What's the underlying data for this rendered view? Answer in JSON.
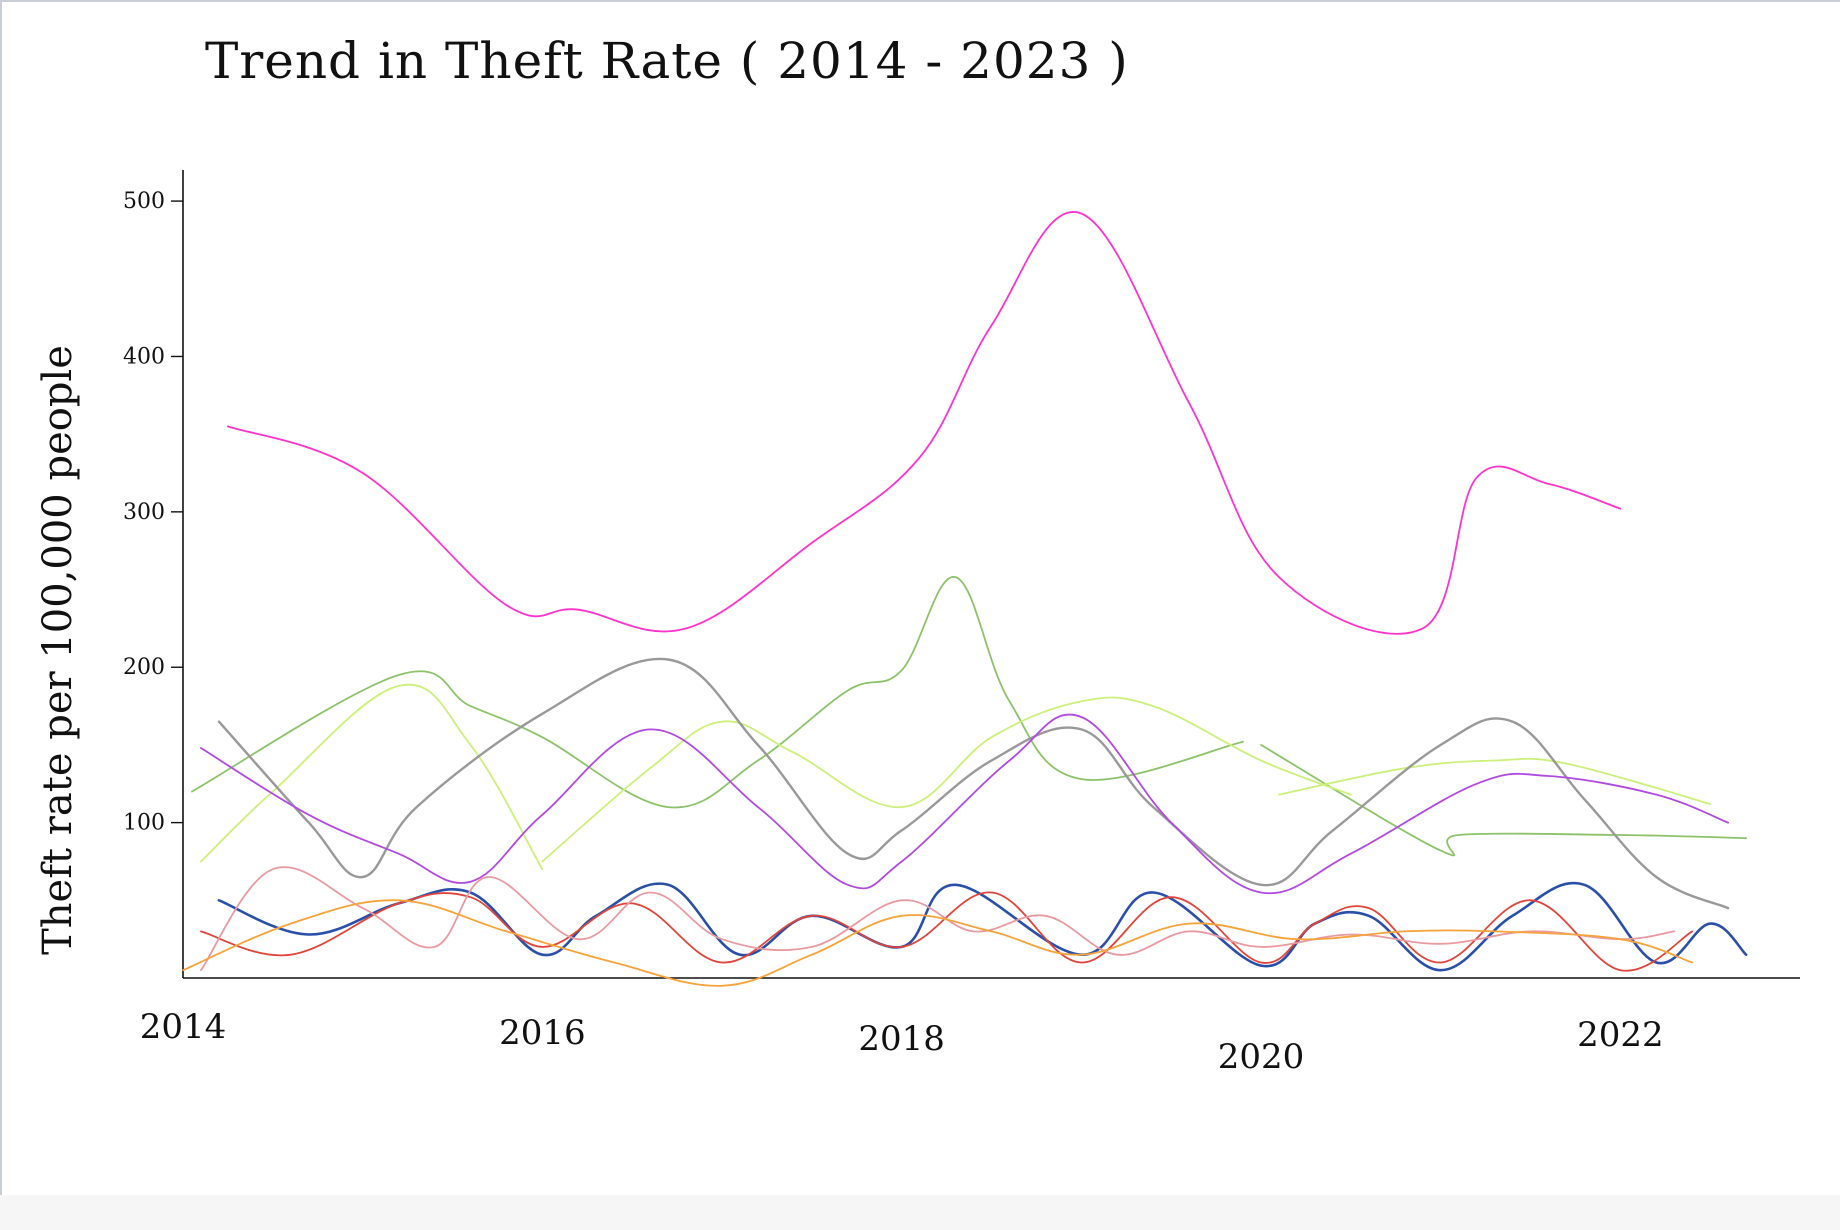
{
  "chart_data": {
    "type": "line",
    "title": "Trend in Theft Rate ( 2014 - 2023 )",
    "xlabel": "",
    "ylabel": "Theft rate per 100,000 people",
    "x_ticks": [
      "2014",
      "2016",
      "2018",
      "2020",
      "2022"
    ],
    "y_ticks": [
      "500",
      "400",
      "300",
      "200",
      "100"
    ],
    "xlim": [
      2014,
      2023
    ],
    "ylim": [
      0,
      520
    ],
    "grid": false,
    "legend": "none",
    "series": [
      {
        "color": "#ff33cc",
        "points": [
          [
            2014.25,
            355
          ],
          [
            2015.0,
            325
          ],
          [
            2015.8,
            240
          ],
          [
            2016.2,
            237
          ],
          [
            2016.8,
            225
          ],
          [
            2017.5,
            280
          ],
          [
            2018.1,
            335
          ],
          [
            2018.5,
            420
          ],
          [
            2019.0,
            492
          ],
          [
            2019.6,
            370
          ],
          [
            2020.1,
            258
          ],
          [
            2020.9,
            225
          ],
          [
            2021.2,
            322
          ],
          [
            2021.6,
            318
          ],
          [
            2022.0,
            302
          ]
        ]
      },
      {
        "color": "#8dc26b",
        "points": [
          [
            2014.05,
            120
          ],
          [
            2015.2,
            195
          ],
          [
            2015.6,
            175
          ],
          [
            2016.0,
            155
          ],
          [
            2016.7,
            110
          ],
          [
            2017.2,
            140
          ],
          [
            2017.7,
            185
          ],
          [
            2018.0,
            198
          ],
          [
            2018.3,
            258
          ],
          [
            2018.6,
            178
          ],
          [
            2019.0,
            128
          ],
          [
            2019.9,
            152
          ]
        ]
      },
      {
        "color": "#8dc26b",
        "points": [
          [
            2020.0,
            150
          ],
          [
            2021.0,
            82
          ],
          [
            2021.1,
            92
          ],
          [
            2022.0,
            92
          ],
          [
            2022.7,
            90
          ]
        ]
      },
      {
        "color": "#ccf07a",
        "points": [
          [
            2014.1,
            75
          ],
          [
            2014.5,
            120
          ],
          [
            2015.2,
            188
          ],
          [
            2015.6,
            150
          ],
          [
            2016.0,
            70
          ]
        ]
      },
      {
        "color": "#ccf07a",
        "points": [
          [
            2016.0,
            75
          ],
          [
            2016.6,
            135
          ],
          [
            2017.0,
            165
          ],
          [
            2017.4,
            145
          ],
          [
            2018.0,
            110
          ],
          [
            2018.5,
            155
          ],
          [
            2019.0,
            178
          ],
          [
            2019.4,
            175
          ],
          [
            2020.0,
            140
          ],
          [
            2020.5,
            118
          ]
        ]
      },
      {
        "color": "#ccf07a",
        "points": [
          [
            2020.1,
            118
          ],
          [
            2020.8,
            135
          ],
          [
            2021.3,
            140
          ],
          [
            2021.7,
            138
          ],
          [
            2022.5,
            112
          ]
        ]
      },
      {
        "color": "#999999",
        "points": [
          [
            2014.2,
            165
          ],
          [
            2014.7,
            100
          ],
          [
            2015.0,
            65
          ],
          [
            2015.3,
            110
          ],
          [
            2016.0,
            170
          ],
          [
            2016.7,
            205
          ],
          [
            2017.2,
            150
          ],
          [
            2017.7,
            80
          ],
          [
            2018.0,
            95
          ],
          [
            2018.5,
            140
          ],
          [
            2019.0,
            160
          ],
          [
            2019.4,
            110
          ],
          [
            2020.0,
            60
          ],
          [
            2020.4,
            95
          ],
          [
            2021.0,
            150
          ],
          [
            2021.4,
            165
          ],
          [
            2021.8,
            115
          ],
          [
            2022.2,
            65
          ],
          [
            2022.6,
            45
          ]
        ]
      },
      {
        "color": "#b04ae0",
        "points": [
          [
            2014.1,
            148
          ],
          [
            2014.7,
            105
          ],
          [
            2015.2,
            80
          ],
          [
            2015.6,
            62
          ],
          [
            2016.0,
            105
          ],
          [
            2016.6,
            160
          ],
          [
            2017.2,
            110
          ],
          [
            2017.7,
            60
          ],
          [
            2018.0,
            75
          ],
          [
            2018.6,
            140
          ],
          [
            2019.0,
            168
          ],
          [
            2019.5,
            100
          ],
          [
            2020.0,
            55
          ],
          [
            2020.5,
            80
          ],
          [
            2021.2,
            125
          ],
          [
            2021.6,
            130
          ],
          [
            2022.2,
            118
          ],
          [
            2022.6,
            100
          ]
        ]
      },
      {
        "color": "#2a4fa8",
        "points": [
          [
            2014.2,
            50
          ],
          [
            2014.7,
            28
          ],
          [
            2015.2,
            48
          ],
          [
            2015.6,
            55
          ],
          [
            2016.0,
            15
          ],
          [
            2016.3,
            40
          ],
          [
            2016.7,
            60
          ],
          [
            2017.1,
            15
          ],
          [
            2017.5,
            40
          ],
          [
            2018.0,
            20
          ],
          [
            2018.3,
            60
          ],
          [
            2019.0,
            15
          ],
          [
            2019.4,
            55
          ],
          [
            2020.0,
            8
          ],
          [
            2020.3,
            35
          ],
          [
            2020.6,
            40
          ],
          [
            2021.0,
            5
          ],
          [
            2021.4,
            40
          ],
          [
            2021.8,
            60
          ],
          [
            2022.2,
            10
          ],
          [
            2022.5,
            35
          ],
          [
            2022.7,
            15
          ]
        ]
      },
      {
        "color": "#e0443a",
        "points": [
          [
            2014.1,
            30
          ],
          [
            2014.6,
            15
          ],
          [
            2015.2,
            48
          ],
          [
            2015.6,
            52
          ],
          [
            2016.0,
            20
          ],
          [
            2016.5,
            48
          ],
          [
            2017.0,
            10
          ],
          [
            2017.5,
            40
          ],
          [
            2018.0,
            20
          ],
          [
            2018.5,
            55
          ],
          [
            2019.0,
            10
          ],
          [
            2019.5,
            52
          ],
          [
            2020.0,
            10
          ],
          [
            2020.3,
            35
          ],
          [
            2020.6,
            45
          ],
          [
            2021.0,
            10
          ],
          [
            2021.5,
            50
          ],
          [
            2022.0,
            5
          ],
          [
            2022.4,
            30
          ]
        ]
      },
      {
        "color": "#e89aa0",
        "points": [
          [
            2014.1,
            5
          ],
          [
            2014.5,
            70
          ],
          [
            2015.0,
            45
          ],
          [
            2015.4,
            20
          ],
          [
            2015.7,
            65
          ],
          [
            2016.2,
            25
          ],
          [
            2016.6,
            55
          ],
          [
            2017.0,
            25
          ],
          [
            2017.5,
            20
          ],
          [
            2018.0,
            50
          ],
          [
            2018.4,
            30
          ],
          [
            2018.8,
            40
          ],
          [
            2019.2,
            15
          ],
          [
            2019.6,
            30
          ],
          [
            2020.0,
            20
          ],
          [
            2020.5,
            28
          ],
          [
            2021.0,
            22
          ],
          [
            2021.5,
            30
          ],
          [
            2022.0,
            25
          ],
          [
            2022.3,
            30
          ]
        ]
      },
      {
        "color": "#f5a33a",
        "points": [
          [
            2014.0,
            5
          ],
          [
            2014.6,
            35
          ],
          [
            2015.2,
            50
          ],
          [
            2015.8,
            30
          ],
          [
            2016.4,
            10
          ],
          [
            2017.0,
            -5
          ],
          [
            2017.5,
            15
          ],
          [
            2018.0,
            40
          ],
          [
            2018.5,
            30
          ],
          [
            2019.0,
            15
          ],
          [
            2019.6,
            35
          ],
          [
            2020.2,
            25
          ],
          [
            2020.8,
            30
          ],
          [
            2021.3,
            30
          ],
          [
            2022.0,
            25
          ],
          [
            2022.4,
            10
          ]
        ]
      }
    ]
  }
}
